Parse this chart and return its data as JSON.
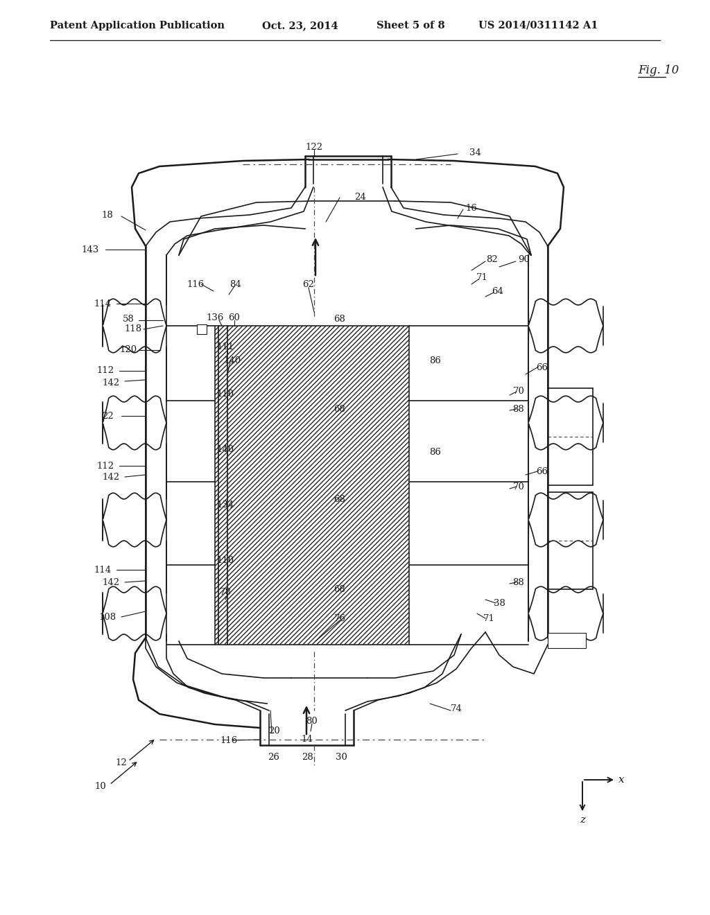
{
  "bg_color": "#ffffff",
  "line_color": "#1a1a1a",
  "header_text": "Patent Application Publication",
  "header_date": "Oct. 23, 2014",
  "header_sheet": "Sheet 5 of 8",
  "header_patent": "US 2014/0311142 A1",
  "fig_label": "Fig. 10",
  "title_fontsize": 11.5,
  "label_fontsize": 9.5
}
